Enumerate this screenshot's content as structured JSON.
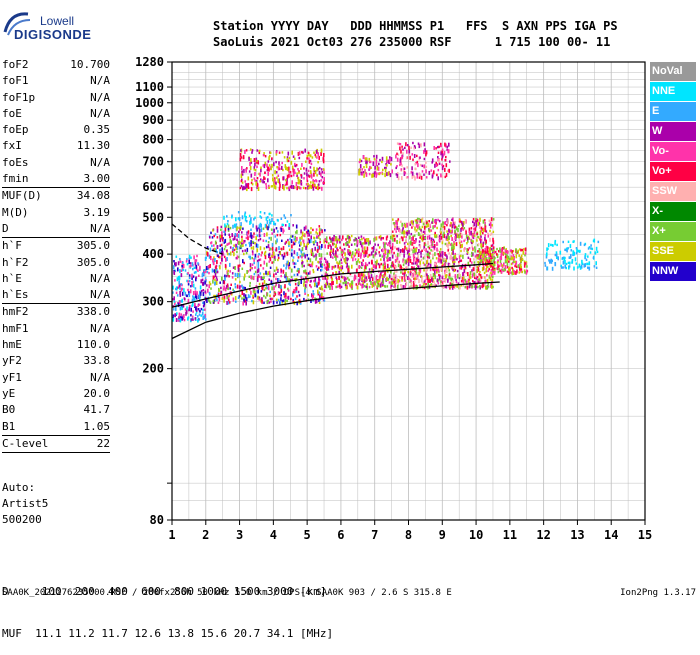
{
  "logo": {
    "top": "Lowell",
    "bottom": "DIGISONDE"
  },
  "header": {
    "line1": "Station YYYY DAY   DDD HHMMSS P1   FFS  S AXN PPS IGA PS",
    "line2": "SaoLuis 2021 Oct03 276 235000 RSF      1 715 100 00- 11"
  },
  "params_groups": [
    [
      [
        "foF2",
        "10.700"
      ],
      [
        "foF1",
        "N/A"
      ],
      [
        "foF1p",
        "N/A"
      ],
      [
        "foE",
        "N/A"
      ],
      [
        "foEp",
        "0.35"
      ],
      [
        "fxI",
        "11.30"
      ],
      [
        "foEs",
        "N/A"
      ],
      [
        "fmin",
        "3.00"
      ]
    ],
    [
      [
        "MUF(D)",
        "34.08"
      ],
      [
        "M(D)",
        "3.19"
      ],
      [
        "D",
        "N/A"
      ]
    ],
    [
      [
        "h`F",
        "305.0"
      ],
      [
        "h`F2",
        "305.0"
      ],
      [
        "h`E",
        "N/A"
      ],
      [
        "h`Es",
        "N/A"
      ]
    ],
    [
      [
        "hmF2",
        "338.0"
      ],
      [
        "hmF1",
        "N/A"
      ],
      [
        "hmE",
        "110.0"
      ],
      [
        "yF2",
        "33.8"
      ],
      [
        "yF1",
        "N/A"
      ],
      [
        "yE",
        "20.0"
      ],
      [
        "B0",
        "41.7"
      ],
      [
        "B1",
        "1.05"
      ]
    ],
    [
      [
        "C-level",
        "22"
      ]
    ]
  ],
  "auto_block": [
    "Auto:",
    "Artist5",
    "500200"
  ],
  "legend": [
    {
      "label": "NoVal",
      "color": "#999999"
    },
    {
      "label": "NNE",
      "color": "#00e5ff"
    },
    {
      "label": "E",
      "color": "#33aaff"
    },
    {
      "label": "W",
      "color": "#aa00aa"
    },
    {
      "label": "Vo-",
      "color": "#ff33aa"
    },
    {
      "label": "Vo+",
      "color": "#ff0044"
    },
    {
      "label": "SSW",
      "color": "#ffb0b0"
    },
    {
      "label": "X-",
      "color": "#008800"
    },
    {
      "label": "X+",
      "color": "#77cc33"
    },
    {
      "label": "SSE",
      "color": "#cccc00"
    },
    {
      "label": "NNW",
      "color": "#2200cc"
    }
  ],
  "dmuf": {
    "d_line": "D     100  200  400  600  800 1000 1500 3000 [km]",
    "muf_line": "MUF  11.1 11.2 11.7 12.6 13.8 15.6 20.7 34.1 [MHz]"
  },
  "footer": {
    "left": "SAA0K_2021276235000.RSF / 280fx256h 50 kHz 5.0 km / DPS-4 SAA0K 903 / 2.6 S 315.8 E",
    "right": "Ion2Png 1.3.17"
  },
  "chart_data": {
    "type": "scatter",
    "title": "",
    "xlabel": "",
    "ylabel": "",
    "xlim": [
      1,
      15
    ],
    "ylim": [
      80,
      1280
    ],
    "y_scale": "log",
    "grid": true,
    "x_ticks": [
      "1",
      "2",
      "3",
      "4",
      "5",
      "6",
      "7",
      "8",
      "9",
      "10",
      "11",
      "12",
      "13",
      "14",
      "15"
    ],
    "y_ticks": [
      {
        "value": 80,
        "label": "80"
      },
      {
        "value": 100,
        "label": ""
      },
      {
        "value": 200,
        "label": "200"
      },
      {
        "value": 300,
        "label": "300"
      },
      {
        "value": 400,
        "label": "400"
      },
      {
        "value": 500,
        "label": "500"
      },
      {
        "value": 600,
        "label": "600"
      },
      {
        "value": 700,
        "label": "700"
      },
      {
        "value": 800,
        "label": "800"
      },
      {
        "value": 900,
        "label": "900"
      },
      {
        "value": 1000,
        "label": "1000"
      },
      {
        "value": 1100,
        "label": "1100"
      },
      {
        "value": 1280,
        "label": "1280"
      }
    ],
    "echo_regions": [
      {
        "x": [
          1.0,
          2.0
        ],
        "y": [
          270,
          400
        ],
        "n": 260,
        "colors": [
          "#2200cc",
          "#aa00aa",
          "#33aaff",
          "#ff33aa",
          "#00e5ff"
        ]
      },
      {
        "x": [
          2.0,
          5.5
        ],
        "y": [
          300,
          480
        ],
        "n": 900,
        "colors": [
          "#aa00aa",
          "#ff33aa",
          "#ff0044",
          "#77cc33",
          "#cccc00",
          "#2200cc",
          "#33aaff"
        ]
      },
      {
        "x": [
          5.5,
          7.5
        ],
        "y": [
          330,
          450
        ],
        "n": 500,
        "colors": [
          "#aa00aa",
          "#ff33aa",
          "#ff0044",
          "#cccc00",
          "#77cc33"
        ]
      },
      {
        "x": [
          7.5,
          10.5
        ],
        "y": [
          330,
          500
        ],
        "n": 1100,
        "colors": [
          "#aa00aa",
          "#ff33aa",
          "#ff0044",
          "#cccc00",
          "#77cc33",
          "#ffb0b0"
        ]
      },
      {
        "x": [
          10.0,
          11.5
        ],
        "y": [
          360,
          420
        ],
        "n": 250,
        "colors": [
          "#ff33aa",
          "#ff0044",
          "#cccc00",
          "#77cc33"
        ]
      },
      {
        "x": [
          3.0,
          5.5
        ],
        "y": [
          600,
          760
        ],
        "n": 340,
        "colors": [
          "#aa00aa",
          "#ff33aa",
          "#ff0044",
          "#cccc00"
        ]
      },
      {
        "x": [
          6.5,
          7.5
        ],
        "y": [
          650,
          730
        ],
        "n": 90,
        "colors": [
          "#aa00aa",
          "#ff33aa",
          "#cccc00"
        ]
      },
      {
        "x": [
          7.6,
          9.2
        ],
        "y": [
          640,
          790
        ],
        "n": 160,
        "colors": [
          "#aa00aa",
          "#ff33aa",
          "#ffb0b0",
          "#ff0044"
        ]
      },
      {
        "x": [
          12.0,
          13.6
        ],
        "y": [
          370,
          440
        ],
        "n": 120,
        "colors": [
          "#00e5ff",
          "#33aaff"
        ]
      },
      {
        "x": [
          2.5,
          4.5
        ],
        "y": [
          480,
          520
        ],
        "n": 60,
        "colors": [
          "#00e5ff",
          "#33aaff"
        ]
      }
    ],
    "trace_lower": {
      "x": [
        1.0,
        2.0,
        3.0,
        4.0,
        5.0,
        6.0,
        7.0,
        8.0,
        9.0,
        10.0,
        10.7
      ],
      "y": [
        240,
        265,
        280,
        292,
        302,
        310,
        318,
        325,
        330,
        335,
        338
      ]
    },
    "trace_upper": {
      "x": [
        1.0,
        2.0,
        3.0,
        4.0,
        5.0,
        6.0,
        7.0,
        8.0,
        9.0,
        10.0,
        10.5
      ],
      "y": [
        290,
        305,
        320,
        335,
        345,
        355,
        360,
        365,
        370,
        375,
        378
      ]
    },
    "trace_dashed": {
      "x": [
        1.0,
        1.5,
        2.0,
        2.5
      ],
      "y": [
        480,
        440,
        415,
        400
      ]
    }
  }
}
